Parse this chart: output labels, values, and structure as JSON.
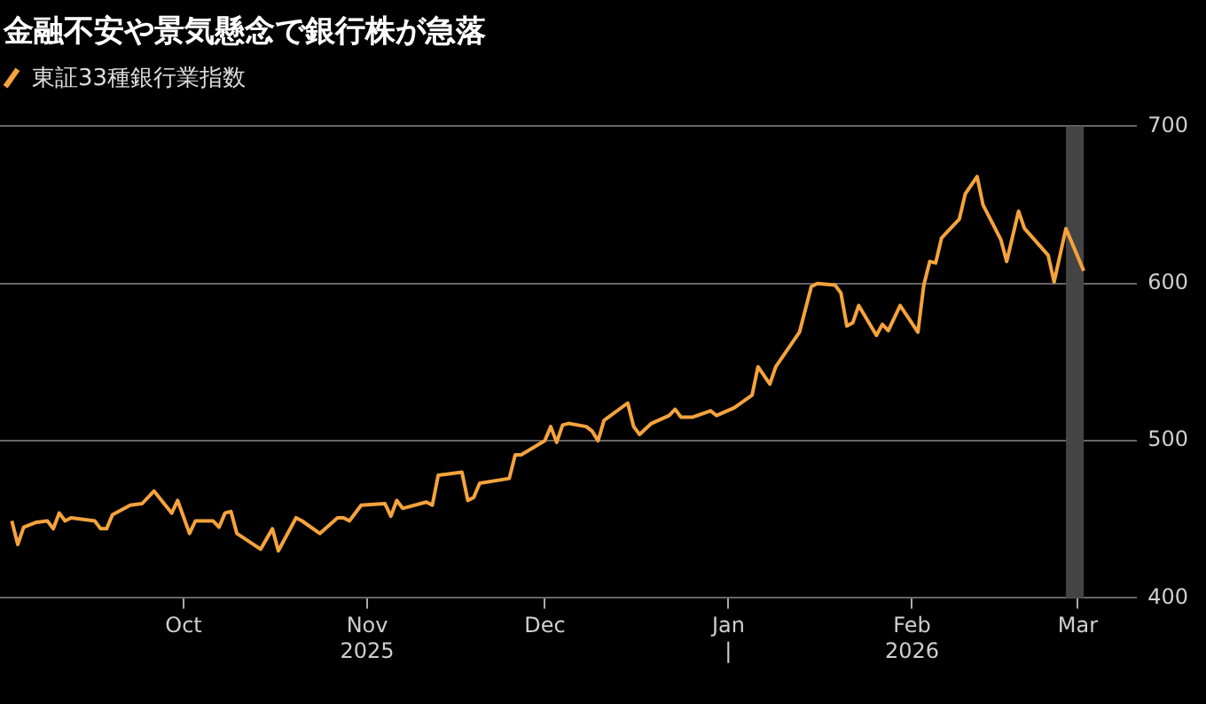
{
  "chart_data": {
    "type": "line",
    "title": "金融不安や景気懸念で銀行株が急落",
    "x": [
      "2025-09-02",
      "2025-09-03",
      "2025-09-04",
      "2025-09-06",
      "2025-09-08",
      "2025-09-09",
      "2025-09-10",
      "2025-09-11",
      "2025-09-12",
      "2025-09-16",
      "2025-09-17",
      "2025-09-18",
      "2025-09-19",
      "2025-09-22",
      "2025-09-24",
      "2025-09-26",
      "2025-09-29",
      "2025-09-30",
      "2025-10-02",
      "2025-10-03",
      "2025-10-06",
      "2025-10-07",
      "2025-10-08",
      "2025-10-09",
      "2025-10-10",
      "2025-10-14",
      "2025-10-16",
      "2025-10-17",
      "2025-10-20",
      "2025-10-21",
      "2025-10-24",
      "2025-10-27",
      "2025-10-28",
      "2025-10-29",
      "2025-10-31",
      "2025-11-04",
      "2025-11-05",
      "2025-11-06",
      "2025-11-07",
      "2025-11-11",
      "2025-11-12",
      "2025-11-13",
      "2025-11-17",
      "2025-11-18",
      "2025-11-19",
      "2025-11-20",
      "2025-11-25",
      "2025-11-26",
      "2025-11-27",
      "2025-12-01",
      "2025-12-02",
      "2025-12-03",
      "2025-12-04",
      "2025-12-05",
      "2025-12-08",
      "2025-12-09",
      "2025-12-10",
      "2025-12-11",
      "2025-12-15",
      "2025-12-16",
      "2025-12-17",
      "2025-12-19",
      "2025-12-22",
      "2025-12-23",
      "2025-12-24",
      "2025-12-26",
      "2025-12-29",
      "2025-12-30",
      "2026-01-02",
      "2026-01-05",
      "2026-01-06",
      "2026-01-08",
      "2026-01-09",
      "2026-01-13",
      "2026-01-15",
      "2026-01-16",
      "2026-01-19",
      "2026-01-20",
      "2026-01-21",
      "2026-01-22",
      "2026-01-23",
      "2026-01-26",
      "2026-01-27",
      "2026-01-28",
      "2026-01-30",
      "2026-02-02",
      "2026-02-03",
      "2026-02-04",
      "2026-02-05",
      "2026-02-06",
      "2026-02-09",
      "2026-02-10",
      "2026-02-12",
      "2026-02-13",
      "2026-02-16",
      "2026-02-17",
      "2026-02-19",
      "2026-02-20",
      "2026-02-24",
      "2026-02-25",
      "2026-02-27",
      "2026-03-02"
    ],
    "series": [
      {
        "name": "東証33種銀行業指数",
        "color": "#f5a33c",
        "values": [
          449,
          434,
          445,
          448,
          449,
          444,
          454,
          449,
          451,
          449,
          444,
          444,
          453,
          459,
          460,
          468,
          454,
          462,
          441,
          449,
          449,
          445,
          454,
          455,
          441,
          431,
          444,
          430,
          451,
          449,
          441,
          451,
          451,
          449,
          459,
          460,
          452,
          462,
          457,
          461,
          459,
          478,
          480,
          462,
          464,
          473,
          476,
          491,
          491,
          500,
          509,
          499,
          510,
          511,
          509,
          506,
          500,
          513,
          524,
          509,
          504,
          511,
          516,
          520,
          515,
          515,
          519,
          516,
          521,
          529,
          547,
          536,
          547,
          569,
          598,
          600,
          599,
          594,
          573,
          575,
          586,
          567,
          574,
          570,
          586,
          569,
          599,
          614,
          613,
          629,
          641,
          657,
          668,
          650,
          628,
          614,
          646,
          635,
          618,
          601,
          635,
          608
        ]
      }
    ],
    "xlim": [
      "2025-08-31",
      "2026-03-11"
    ],
    "xticks": [
      {
        "value": "2025-10-01",
        "label": "Oct"
      },
      {
        "value": "2025-11-01",
        "label": "Nov\n2025"
      },
      {
        "value": "2025-12-01",
        "label": "Dec"
      },
      {
        "value": "2026-01-01",
        "label": "Jan\n|"
      },
      {
        "value": "2026-02-01",
        "label": "Feb\n2026"
      },
      {
        "value": "2026-03-01",
        "label": "Mar"
      }
    ],
    "ylim": [
      400,
      700
    ],
    "yticks": [
      400,
      500,
      600,
      700
    ],
    "bands": [
      {
        "axis": "x",
        "from": "2026-02-27",
        "to": "2026-03-02",
        "color": "#444444"
      }
    ],
    "grid": "y",
    "legend": "top left"
  }
}
